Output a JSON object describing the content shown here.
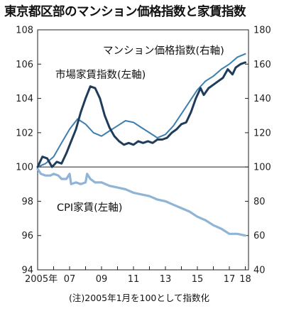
{
  "chart_data": {
    "type": "line",
    "title": "東京都区部のマンション価格指数と家賃指数",
    "note": "(注)2005年1月を100として指数化",
    "x_tick_labels": [
      "2005年",
      "07",
      "09",
      "11",
      "13",
      "15",
      "17",
      "18"
    ],
    "x_ticks": [
      2005,
      2007,
      2009,
      2011,
      2013,
      2015,
      2017,
      2018
    ],
    "xlim": [
      2005,
      2018.2
    ],
    "y_left": {
      "lim": [
        94,
        108
      ],
      "ticks": [
        94,
        96,
        98,
        100,
        102,
        104,
        106,
        108
      ]
    },
    "y_right": {
      "lim": [
        40,
        180
      ],
      "ticks": [
        40,
        60,
        80,
        100,
        120,
        140,
        160,
        180
      ]
    },
    "grid": false,
    "series": [
      {
        "name": "マンション価格指数(右軸)",
        "axis": "right",
        "color": "#3d7fae",
        "points": [
          [
            2005.0,
            100
          ],
          [
            2005.5,
            102
          ],
          [
            2006.0,
            106
          ],
          [
            2006.5,
            114
          ],
          [
            2007.0,
            122
          ],
          [
            2007.5,
            128
          ],
          [
            2008.0,
            125
          ],
          [
            2008.5,
            120
          ],
          [
            2009.0,
            118
          ],
          [
            2009.5,
            121
          ],
          [
            2010.0,
            124
          ],
          [
            2010.5,
            127
          ],
          [
            2011.0,
            126
          ],
          [
            2011.5,
            123
          ],
          [
            2012.0,
            120
          ],
          [
            2012.5,
            117
          ],
          [
            2013.0,
            119
          ],
          [
            2013.5,
            124
          ],
          [
            2014.0,
            131
          ],
          [
            2014.5,
            138
          ],
          [
            2015.0,
            145
          ],
          [
            2015.5,
            150
          ],
          [
            2016.0,
            153
          ],
          [
            2016.5,
            157
          ],
          [
            2017.0,
            160
          ],
          [
            2017.5,
            164
          ],
          [
            2018.0,
            166
          ]
        ]
      },
      {
        "name": "市場家賃指数(左軸)",
        "axis": "left",
        "color": "#1f3c5a",
        "points": [
          [
            2005.0,
            100.0
          ],
          [
            2005.3,
            100.6
          ],
          [
            2005.6,
            100.5
          ],
          [
            2005.9,
            100.0
          ],
          [
            2006.2,
            100.3
          ],
          [
            2006.5,
            100.2
          ],
          [
            2006.8,
            100.8
          ],
          [
            2007.1,
            101.5
          ],
          [
            2007.4,
            102.2
          ],
          [
            2007.7,
            103.2
          ],
          [
            2008.0,
            104.0
          ],
          [
            2008.3,
            104.7
          ],
          [
            2008.6,
            104.6
          ],
          [
            2008.9,
            104.0
          ],
          [
            2009.2,
            103.0
          ],
          [
            2009.5,
            102.3
          ],
          [
            2009.8,
            101.8
          ],
          [
            2010.1,
            101.5
          ],
          [
            2010.4,
            101.3
          ],
          [
            2010.7,
            101.4
          ],
          [
            2011.0,
            101.3
          ],
          [
            2011.3,
            101.5
          ],
          [
            2011.6,
            101.4
          ],
          [
            2011.9,
            101.5
          ],
          [
            2012.2,
            101.4
          ],
          [
            2012.5,
            101.6
          ],
          [
            2012.8,
            101.6
          ],
          [
            2013.1,
            101.7
          ],
          [
            2013.4,
            102.0
          ],
          [
            2013.7,
            102.2
          ],
          [
            2014.0,
            102.5
          ],
          [
            2014.3,
            102.6
          ],
          [
            2014.6,
            103.2
          ],
          [
            2014.9,
            104.0
          ],
          [
            2015.2,
            104.6
          ],
          [
            2015.4,
            104.2
          ],
          [
            2015.7,
            104.6
          ],
          [
            2016.0,
            104.8
          ],
          [
            2016.3,
            105.0
          ],
          [
            2016.6,
            105.2
          ],
          [
            2016.9,
            105.7
          ],
          [
            2017.2,
            105.4
          ],
          [
            2017.4,
            105.8
          ],
          [
            2017.7,
            106.0
          ],
          [
            2018.0,
            106.1
          ]
        ]
      },
      {
        "name": "CPI家賃(左軸)",
        "axis": "left",
        "color": "#8fb4d6",
        "points": [
          [
            2005.0,
            99.9
          ],
          [
            2005.2,
            99.6
          ],
          [
            2005.5,
            99.5
          ],
          [
            2005.8,
            99.5
          ],
          [
            2006.0,
            99.6
          ],
          [
            2006.3,
            99.5
          ],
          [
            2006.5,
            99.3
          ],
          [
            2006.8,
            99.3
          ],
          [
            2007.0,
            99.6
          ],
          [
            2007.1,
            99.0
          ],
          [
            2007.4,
            99.1
          ],
          [
            2007.7,
            99.0
          ],
          [
            2008.0,
            99.1
          ],
          [
            2008.1,
            99.6
          ],
          [
            2008.3,
            99.3
          ],
          [
            2008.6,
            99.1
          ],
          [
            2009.0,
            99.1
          ],
          [
            2009.5,
            98.9
          ],
          [
            2010.0,
            98.8
          ],
          [
            2010.5,
            98.7
          ],
          [
            2011.0,
            98.5
          ],
          [
            2011.5,
            98.4
          ],
          [
            2012.0,
            98.3
          ],
          [
            2012.5,
            98.1
          ],
          [
            2013.0,
            98.0
          ],
          [
            2013.5,
            97.8
          ],
          [
            2014.0,
            97.6
          ],
          [
            2014.5,
            97.4
          ],
          [
            2015.0,
            97.1
          ],
          [
            2015.5,
            96.9
          ],
          [
            2016.0,
            96.6
          ],
          [
            2016.5,
            96.4
          ],
          [
            2017.0,
            96.1
          ],
          [
            2017.5,
            96.1
          ],
          [
            2018.0,
            96.0
          ]
        ]
      }
    ]
  }
}
